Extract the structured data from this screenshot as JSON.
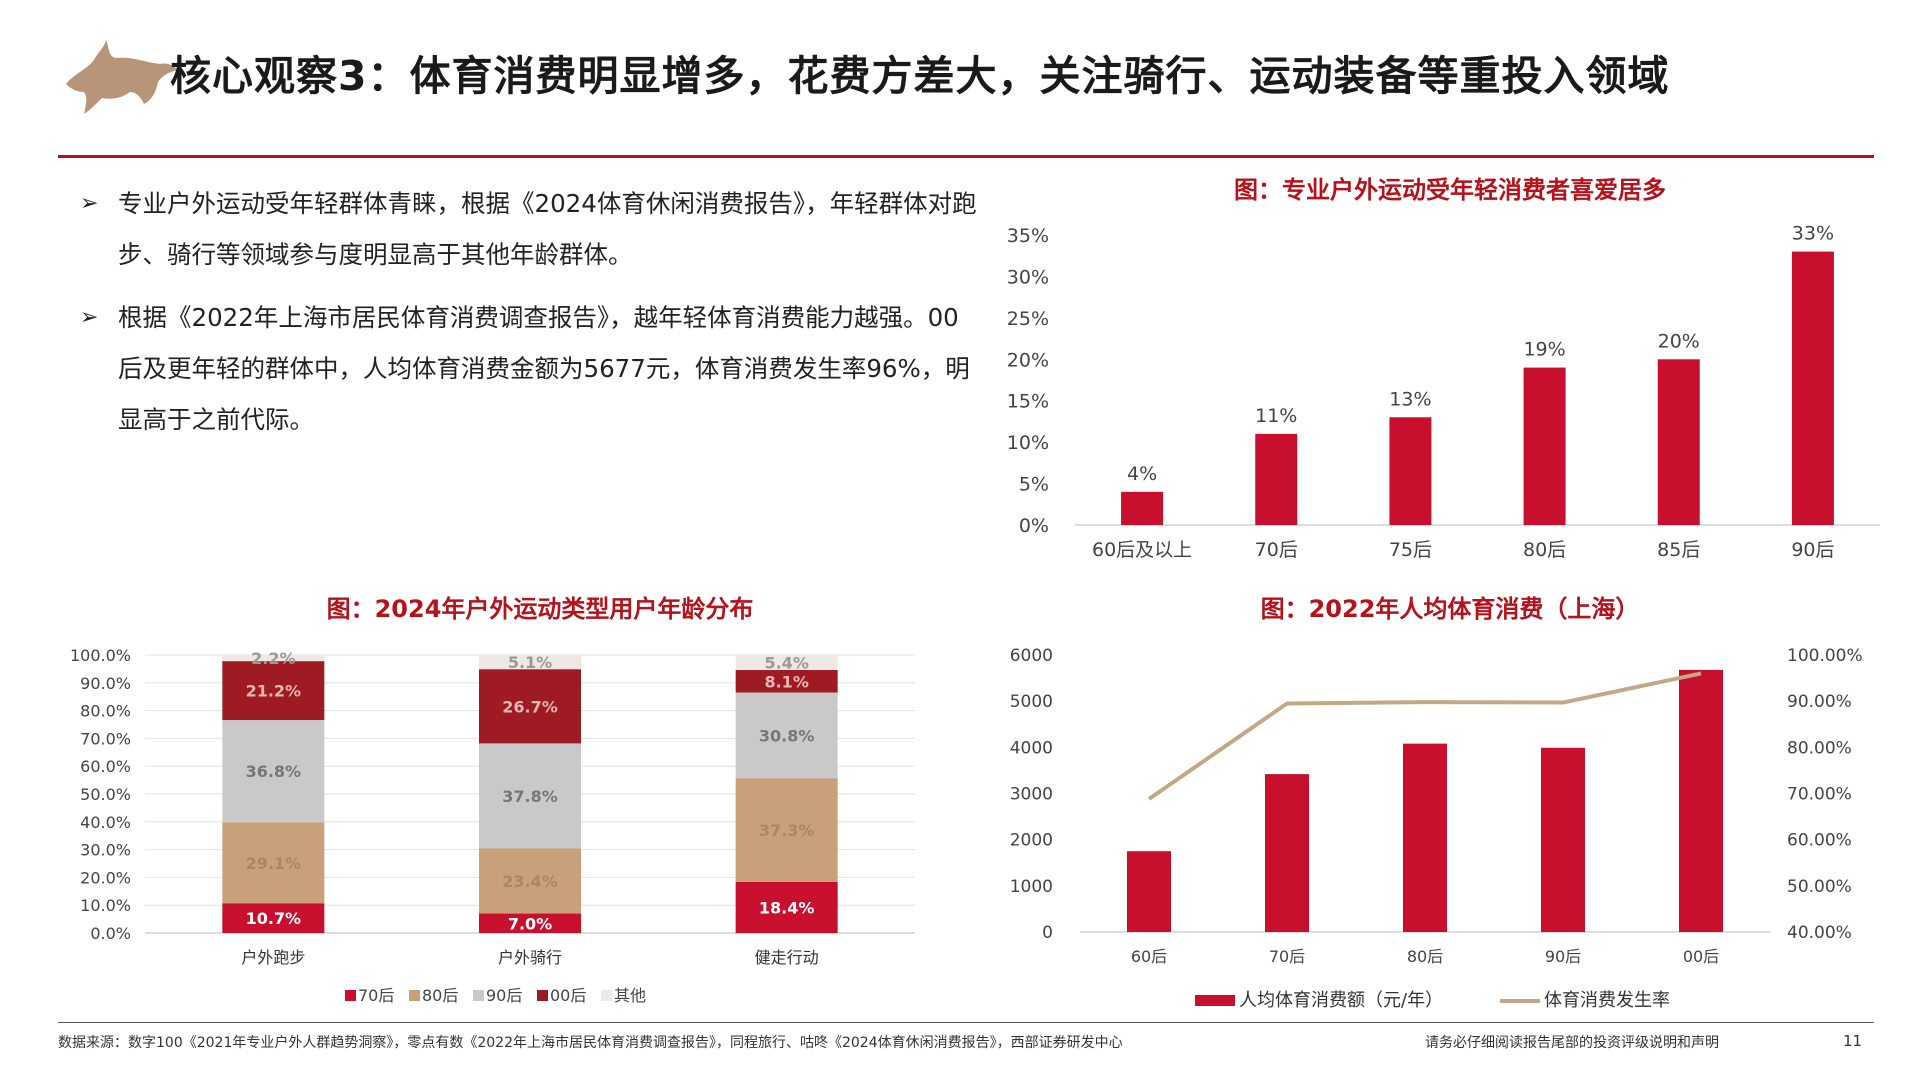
{
  "header": {
    "title": "核心观察3：体育消费明显增多，花费方差大，关注骑行、运动装备等重投入领域",
    "logo_icon": "bull-logo-icon",
    "accent_color": "#b5121b"
  },
  "bullets": [
    "专业户外运动受年轻群体青睐，根据《2024体育休闲消费报告》，年轻群体对跑步、骑行等领域参与度明显高于其他年龄群体。",
    "根据《2022年上海市居民体育消费调查报告》，越年轻体育消费能力越强。00后及更年轻的群体中，人均体育消费金额为5677元，体育消费发生率96%，明显高于之前代际。"
  ],
  "footer": {
    "source": "数据来源：数字100《2021年专业户外人群趋势洞察》，零点有数《2022年上海市居民体育消费调查报告》，同程旅行、咕咚《2024体育休闲消费报告》，西部证券研发中心",
    "disclaimer": "请务必仔细阅读报告尾部的投资评级说明和声明",
    "page": "11"
  },
  "chart_data": [
    {
      "id": "outdoor-by-age",
      "type": "bar",
      "title": "图：专业户外运动受年轻消费者喜爱居多",
      "categories": [
        "60后及以上",
        "70后",
        "75后",
        "80后",
        "85后",
        "90后"
      ],
      "values": [
        4,
        11,
        13,
        19,
        20,
        33
      ],
      "value_labels": [
        "4%",
        "11%",
        "13%",
        "19%",
        "20%",
        "33%"
      ],
      "ylim": [
        0,
        35
      ],
      "yticks": [
        "0%",
        "5%",
        "10%",
        "15%",
        "20%",
        "25%",
        "30%",
        "35%"
      ],
      "color": "#c8102e",
      "grid": false
    },
    {
      "id": "age-distribution-by-activity",
      "type": "bar",
      "stacked": true,
      "title": "图：2024年户外运动类型用户年龄分布",
      "categories": [
        "户外跑步",
        "户外骑行",
        "健走行动"
      ],
      "series": [
        {
          "name": "70后",
          "values": [
            10.7,
            7.0,
            18.4
          ],
          "labels": [
            "10.7%",
            "7.0%",
            "18.4%"
          ],
          "color": "#c8102e",
          "label_color": "#ffffff"
        },
        {
          "name": "80后",
          "values": [
            29.1,
            23.4,
            37.3
          ],
          "labels": [
            "29.1%",
            "23.4%",
            "37.3%"
          ],
          "color": "#c8a07a",
          "label_color": "#a98866"
        },
        {
          "name": "90后",
          "values": [
            36.8,
            37.8,
            30.8
          ],
          "labels": [
            "36.8%",
            "37.8%",
            "30.8%"
          ],
          "color": "#c9c9c9",
          "label_color": "#777777"
        },
        {
          "name": "00后",
          "values": [
            21.2,
            26.7,
            8.1
          ],
          "labels": [
            "21.2%",
            "26.7%",
            "8.1%"
          ],
          "color": "#9e1b24",
          "label_color": "#e8b4b4"
        },
        {
          "name": "其他",
          "values": [
            2.2,
            5.1,
            5.4
          ],
          "labels": [
            "2.2%",
            "5.1%",
            "5.4%"
          ],
          "color": "#efe8e4",
          "label_color": "#999999"
        }
      ],
      "ylim": [
        0,
        100
      ],
      "yticks": [
        "0.0%",
        "10.0%",
        "20.0%",
        "30.0%",
        "40.0%",
        "50.0%",
        "60.0%",
        "70.0%",
        "80.0%",
        "90.0%",
        "100.0%"
      ],
      "legend": "bottom",
      "grid": true
    },
    {
      "id": "shanghai-sports-spending",
      "type": "bar",
      "title": "图：2022年人均体育消费（上海）",
      "categories": [
        "60后",
        "70后",
        "80后",
        "90后",
        "00后"
      ],
      "series": [
        {
          "name": "人均体育消费额（元/年）",
          "type": "bar",
          "axis": "left",
          "values": [
            1750,
            3420,
            4080,
            3990,
            5677
          ],
          "color": "#c8102e"
        },
        {
          "name": "体育消费发生率",
          "type": "line",
          "axis": "right",
          "values": [
            68.8,
            89.5,
            89.8,
            89.7,
            96.0
          ],
          "color": "#c4a886"
        }
      ],
      "ylim_left": [
        0,
        6000
      ],
      "yticks_left": [
        "0",
        "1000",
        "2000",
        "3000",
        "4000",
        "5000",
        "6000"
      ],
      "ylim_right": [
        40,
        100
      ],
      "yticks_right": [
        "40.00%",
        "50.00%",
        "60.00%",
        "70.00%",
        "80.00%",
        "90.00%",
        "100.00%"
      ],
      "legend": "bottom",
      "grid": false
    }
  ]
}
